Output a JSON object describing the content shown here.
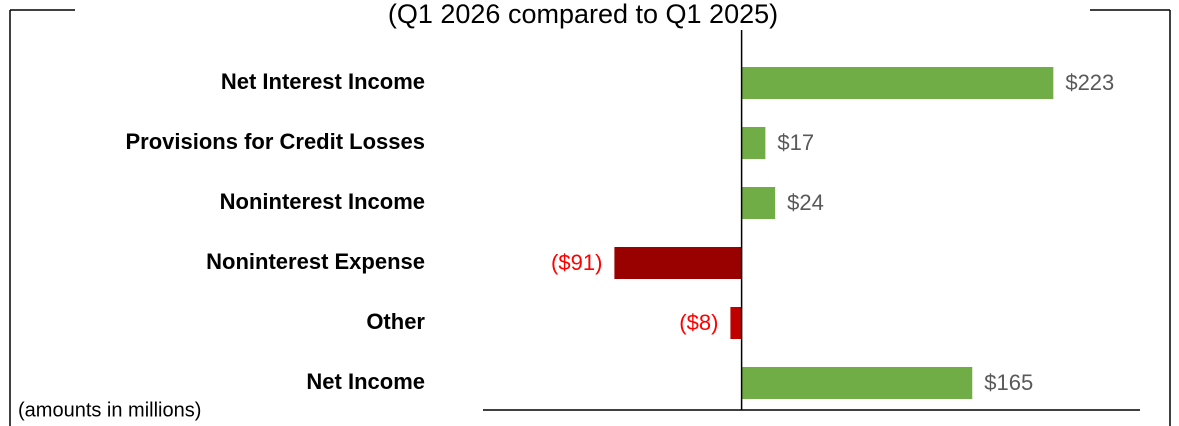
{
  "chart_data": {
    "type": "hbar",
    "title": "(Q1 2026 compared to Q1 2025)",
    "categories": [
      "Net Interest Income",
      "Provisions for Credit Losses",
      "Noninterest Income",
      "Noninterest Expense",
      "Other",
      "Net Income"
    ],
    "values": [
      223,
      17,
      24,
      -91,
      -8,
      165
    ],
    "value_labels": [
      "$223",
      "$17",
      "$24",
      "($91)",
      "($8)",
      "$165"
    ],
    "colors": [
      "#70ad47",
      "#70ad47",
      "#70ad47",
      "#990000",
      "#c00000",
      "#70ad47"
    ],
    "label_colors": [
      "#595959",
      "#595959",
      "#595959",
      "#ff0000",
      "#ff0000",
      "#595959"
    ],
    "xlim": [
      -185,
      285
    ],
    "note": "(amounts in millions)"
  }
}
